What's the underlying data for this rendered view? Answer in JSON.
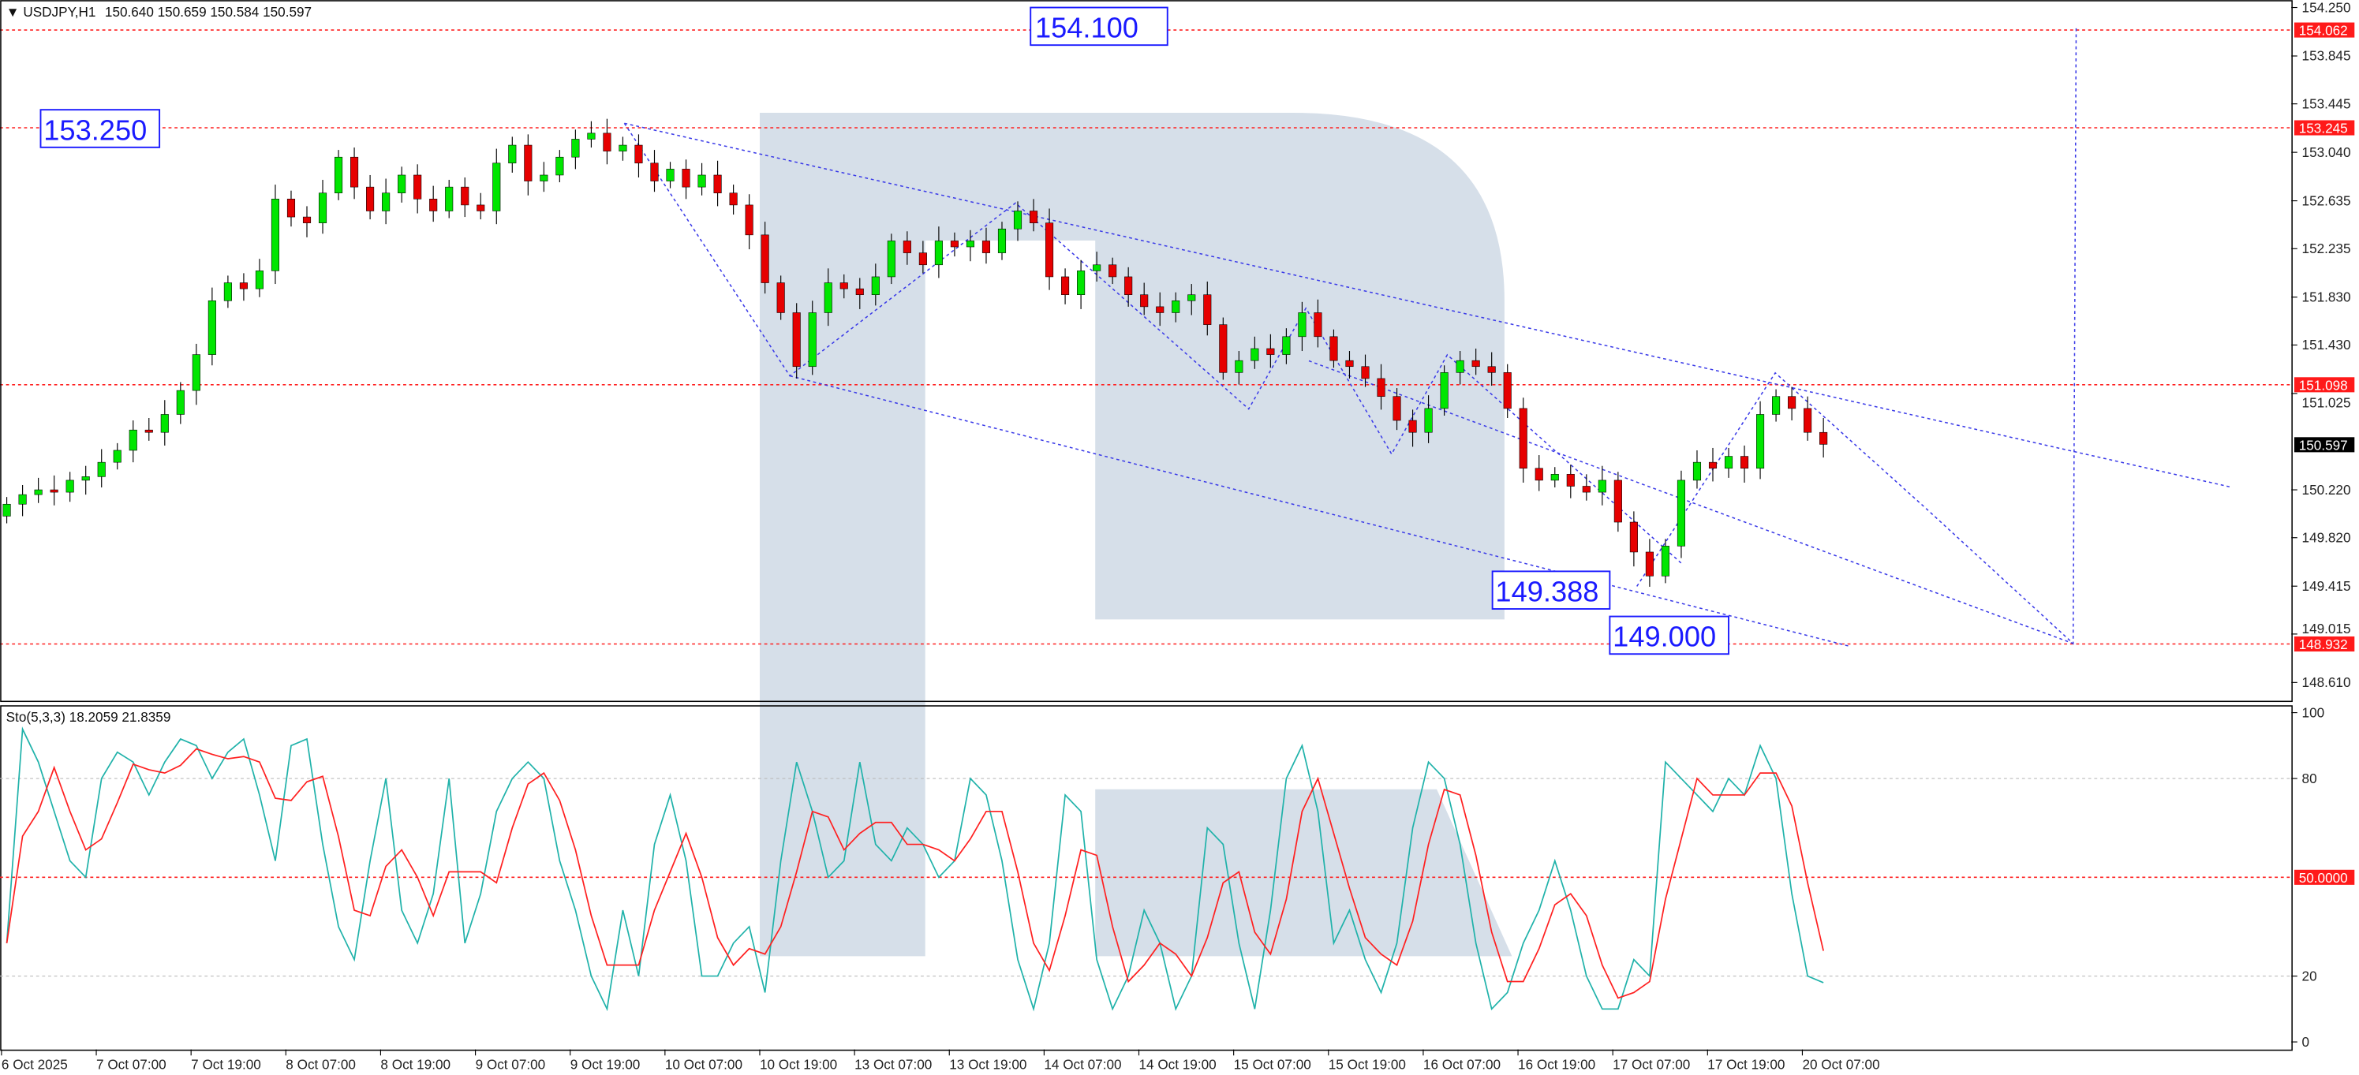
{
  "header": {
    "symbol": "USDJPY,H1",
    "ohlc": "150.640 150.659 150.584 150.597"
  },
  "indicator": {
    "label": "Sto(5,3,3) 18.2059 21.8359"
  },
  "colors": {
    "bull": "#00e600",
    "bear": "#e60000",
    "trend": "#3a3ae8",
    "level": "#ff2020",
    "stoch_k": "#20b2aa",
    "stoch_d": "#ff2020",
    "watermark": "#d6dfe9"
  },
  "annotations": {
    "a1": "154.100",
    "a2": "153.250",
    "a3": "149.388",
    "a4": "149.000"
  },
  "price_axis": {
    "ticks": [
      "154.250",
      "153.845",
      "153.445",
      "153.040",
      "152.635",
      "152.235",
      "151.830",
      "151.430",
      "151.025",
      "150.220",
      "149.820",
      "149.415",
      "149.015",
      "148.610"
    ],
    "levels": [
      "154.062",
      "153.245",
      "151.098",
      "148.932"
    ],
    "current": "150.597"
  },
  "stoch_axis": {
    "ticks": [
      "100",
      "80",
      "20",
      "0"
    ],
    "level": "50.0000"
  },
  "time_axis": [
    "6 Oct 2025",
    "7 Oct 07:00",
    "7 Oct 19:00",
    "8 Oct 07:00",
    "8 Oct 19:00",
    "9 Oct 07:00",
    "9 Oct 19:00",
    "10 Oct 07:00",
    "10 Oct 19:00",
    "13 Oct 07:00",
    "13 Oct 19:00",
    "14 Oct 07:00",
    "14 Oct 19:00",
    "15 Oct 07:00",
    "15 Oct 19:00",
    "16 Oct 07:00",
    "16 Oct 19:00",
    "17 Oct 07:00",
    "17 Oct 19:00",
    "20 Oct 07:00"
  ],
  "chart_data": {
    "type": "candlestick",
    "symbol": "USDJPY",
    "timeframe": "H1",
    "ylim": [
      148.45,
      154.3
    ],
    "closes": [
      150.1,
      150.18,
      150.22,
      150.2,
      150.3,
      150.33,
      150.45,
      150.55,
      150.72,
      150.7,
      150.85,
      151.05,
      151.35,
      151.8,
      151.95,
      151.9,
      152.05,
      152.65,
      152.5,
      152.45,
      152.7,
      153.0,
      152.75,
      152.55,
      152.7,
      152.85,
      152.65,
      152.55,
      152.75,
      152.6,
      152.55,
      152.95,
      153.1,
      152.8,
      152.85,
      153.0,
      153.15,
      153.2,
      153.05,
      153.1,
      152.95,
      152.8,
      152.9,
      152.75,
      152.85,
      152.7,
      152.6,
      152.35,
      151.95,
      151.7,
      151.25,
      151.7,
      151.95,
      151.9,
      151.85,
      152.0,
      152.3,
      152.2,
      152.1,
      152.3,
      152.25,
      152.3,
      152.2,
      152.4,
      152.55,
      152.45,
      152.0,
      151.85,
      152.05,
      152.1,
      152.0,
      151.85,
      151.75,
      151.7,
      151.8,
      151.85,
      151.6,
      151.2,
      151.3,
      151.4,
      151.35,
      151.5,
      151.7,
      151.5,
      151.3,
      151.25,
      151.15,
      151.0,
      150.8,
      150.7,
      150.9,
      151.2,
      151.3,
      151.25,
      151.2,
      150.9,
      150.4,
      150.3,
      150.35,
      150.25,
      150.2,
      150.3,
      149.95,
      149.7,
      149.5,
      149.75,
      150.3,
      150.45,
      150.4,
      150.5,
      150.4,
      150.85,
      151.0,
      150.9,
      150.7,
      150.6
    ],
    "stoch_k": [
      30,
      95,
      85,
      70,
      55,
      50,
      80,
      88,
      85,
      75,
      85,
      92,
      90,
      80,
      88,
      92,
      75,
      55,
      90,
      92,
      60,
      35,
      25,
      55,
      80,
      40,
      30,
      45,
      80,
      30,
      45,
      70,
      80,
      85,
      80,
      55,
      40,
      20,
      10,
      40,
      20,
      60,
      75,
      55,
      20,
      20,
      30,
      35,
      15,
      55,
      85,
      70,
      50,
      55,
      85,
      60,
      55,
      65,
      60,
      50,
      55,
      80,
      75,
      55,
      25,
      10,
      30,
      75,
      70,
      25,
      10,
      20,
      40,
      30,
      10,
      20,
      65,
      60,
      30,
      10,
      40,
      80,
      90,
      70,
      30,
      40,
      25,
      15,
      30,
      65,
      85,
      80,
      60,
      30,
      10,
      15,
      30,
      40,
      55,
      40,
      20,
      10,
      10,
      25,
      20,
      85,
      80,
      75,
      70,
      80,
      75,
      90,
      80,
      45,
      20,
      18
    ],
    "stoch_ylim": [
      0,
      100
    ]
  }
}
